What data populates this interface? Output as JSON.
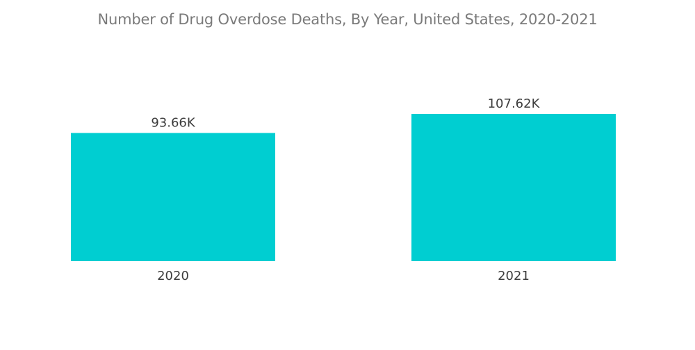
{
  "chart_data": {
    "type": "bar",
    "title": "Number of Drug Overdose Deaths, By Year, United States, 2020-2021",
    "categories": [
      "2020",
      "2021"
    ],
    "values": [
      93.66,
      107.62
    ],
    "data_labels": [
      "93.66K",
      "107.62K"
    ],
    "ylim": [
      0,
      125
    ],
    "xlabel": "",
    "ylabel": "",
    "grid": false,
    "legend": "none",
    "bar_color": "#00CED1"
  }
}
